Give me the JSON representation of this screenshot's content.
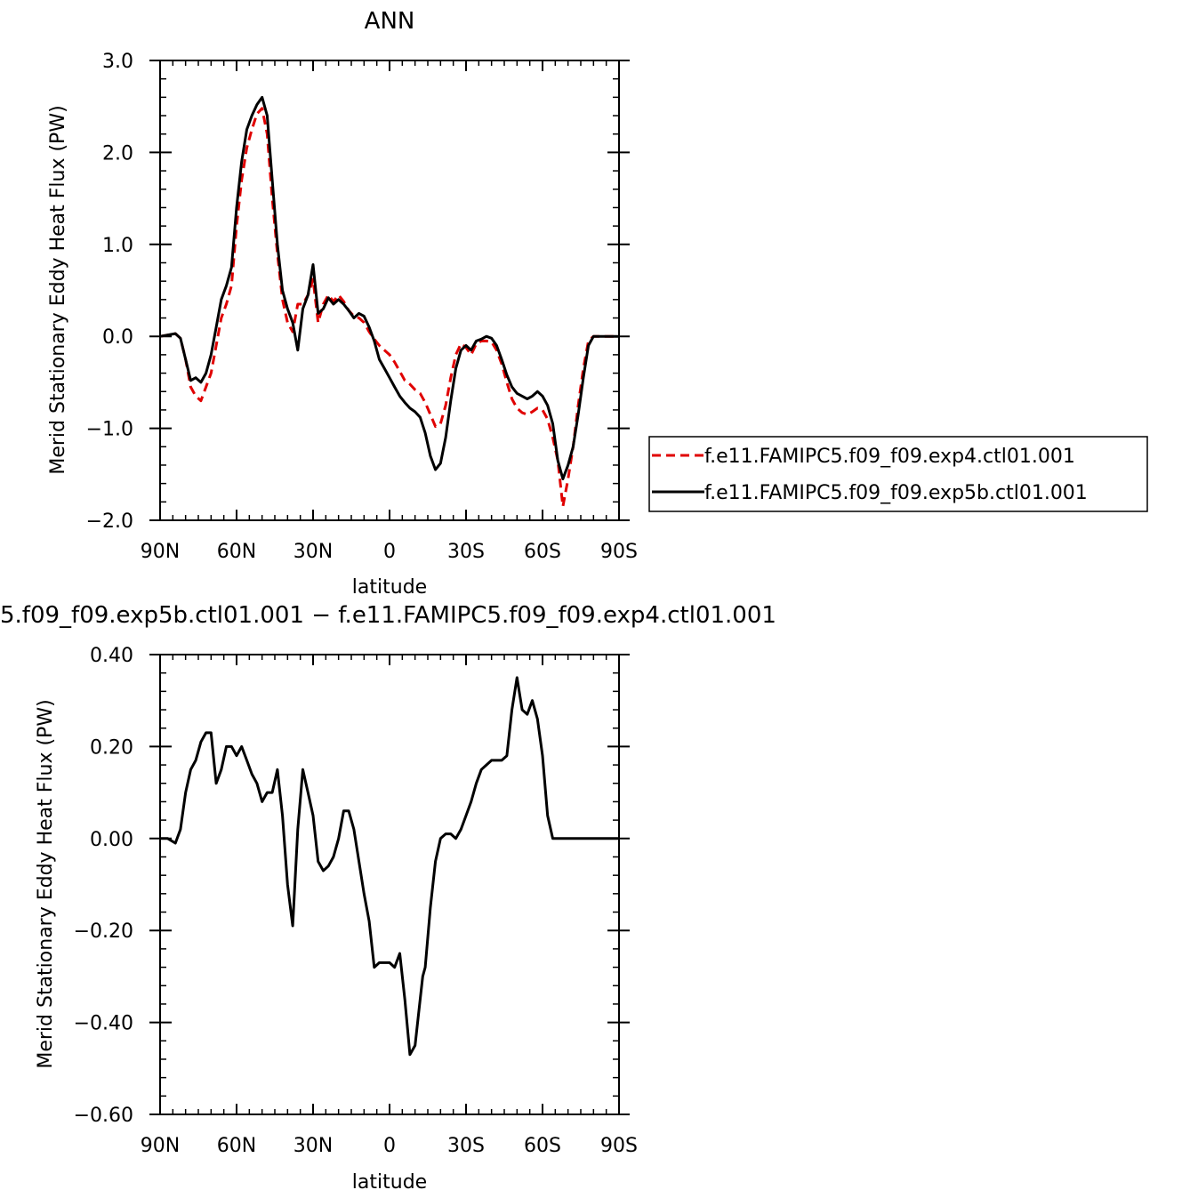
{
  "chart_data": [
    {
      "type": "line",
      "title": "ANN",
      "xlabel": "latitude",
      "ylabel": "Merid Stationary Eddy Heat Flux (PW)",
      "xlim": [
        90,
        -90
      ],
      "ylim": [
        -2.0,
        3.0
      ],
      "x_ticks": [
        90,
        60,
        30,
        0,
        -30,
        -60,
        -90
      ],
      "x_tick_labels": [
        "90N",
        "60N",
        "30N",
        "0",
        "30S",
        "60S",
        "90S"
      ],
      "y_ticks": [
        3.0,
        2.0,
        1.0,
        0.0,
        -1.0,
        -2.0
      ],
      "y_tick_labels": [
        "3.0",
        "2.0",
        "1.0",
        "0.0",
        "−1.0",
        "−2.0"
      ],
      "legend_position": "right-bottom",
      "series": [
        {
          "name": "f.e11.FAMIPC5.f09_f09.exp4.ctl01.001",
          "color": "#e00000",
          "dash": "dashed",
          "x": [
            90,
            88,
            86,
            84,
            82,
            80,
            78,
            76,
            74,
            72,
            70,
            68,
            66,
            64,
            62,
            60,
            58,
            56,
            54,
            52,
            50,
            48,
            46,
            44,
            42,
            40,
            38,
            36,
            34,
            32,
            30,
            28,
            26,
            24,
            22,
            20,
            18,
            16,
            14,
            12,
            10,
            8,
            6,
            4,
            2,
            0,
            -2,
            -4,
            -6,
            -8,
            -10,
            -12,
            -14,
            -16,
            -18,
            -20,
            -22,
            -24,
            -26,
            -28,
            -30,
            -32,
            -34,
            -36,
            -38,
            -40,
            -42,
            -44,
            -46,
            -48,
            -50,
            -52,
            -54,
            -56,
            -58,
            -60,
            -62,
            -64,
            -66,
            -68,
            -70,
            -72,
            -74,
            -76,
            -78,
            -80,
            -82,
            -84,
            -86,
            -88,
            -90
          ],
          "y": [
            0.0,
            0.01,
            0.02,
            0.03,
            -0.02,
            -0.25,
            -0.55,
            -0.65,
            -0.7,
            -0.55,
            -0.4,
            -0.1,
            0.2,
            0.35,
            0.55,
            1.2,
            1.7,
            2.05,
            2.25,
            2.42,
            2.48,
            2.2,
            1.5,
            0.9,
            0.4,
            0.15,
            0.05,
            0.35,
            0.35,
            0.45,
            0.62,
            0.15,
            0.35,
            0.45,
            0.38,
            0.45,
            0.38,
            0.28,
            0.22,
            0.2,
            0.15,
            0.05,
            -0.03,
            -0.1,
            -0.15,
            -0.2,
            -0.28,
            -0.38,
            -0.48,
            -0.52,
            -0.58,
            -0.62,
            -0.72,
            -0.85,
            -0.98,
            -0.95,
            -0.75,
            -0.45,
            -0.2,
            -0.08,
            -0.12,
            -0.2,
            -0.08,
            -0.05,
            -0.05,
            -0.06,
            -0.15,
            -0.3,
            -0.5,
            -0.68,
            -0.78,
            -0.83,
            -0.85,
            -0.82,
            -0.78,
            -0.8,
            -0.9,
            -1.1,
            -1.35,
            -1.85,
            -1.55,
            -1.2,
            -0.75,
            -0.35,
            -0.05,
            0.0,
            0.0,
            0.0,
            0.0,
            0.0,
            0.0
          ]
        },
        {
          "name": "f.e11.FAMIPC5.f09_f09.exp5b.ctl01.001",
          "color": "#000000",
          "dash": "solid",
          "x": [
            90,
            88,
            86,
            84,
            82,
            80,
            78,
            76,
            74,
            72,
            70,
            68,
            66,
            64,
            62,
            60,
            58,
            56,
            54,
            52,
            50,
            48,
            46,
            44,
            42,
            40,
            38,
            36,
            34,
            32,
            30,
            28,
            26,
            24,
            22,
            20,
            18,
            16,
            14,
            12,
            10,
            8,
            6,
            4,
            2,
            0,
            -2,
            -4,
            -6,
            -8,
            -10,
            -12,
            -14,
            -16,
            -18,
            -20,
            -22,
            -24,
            -26,
            -28,
            -30,
            -32,
            -34,
            -36,
            -38,
            -40,
            -42,
            -44,
            -46,
            -48,
            -50,
            -52,
            -54,
            -56,
            -58,
            -60,
            -62,
            -64,
            -66,
            -68,
            -70,
            -72,
            -74,
            -76,
            -78,
            -80,
            -82,
            -84,
            -86,
            -88,
            -90
          ],
          "y": [
            0.0,
            0.01,
            0.02,
            0.03,
            -0.02,
            -0.25,
            -0.48,
            -0.45,
            -0.5,
            -0.4,
            -0.2,
            0.1,
            0.4,
            0.55,
            0.75,
            1.4,
            1.9,
            2.25,
            2.4,
            2.52,
            2.6,
            2.4,
            1.7,
            1.0,
            0.5,
            0.3,
            0.15,
            -0.15,
            0.3,
            0.45,
            0.78,
            0.25,
            0.3,
            0.42,
            0.35,
            0.4,
            0.35,
            0.28,
            0.2,
            0.25,
            0.22,
            0.1,
            -0.05,
            -0.25,
            -0.35,
            -0.45,
            -0.55,
            -0.65,
            -0.72,
            -0.78,
            -0.82,
            -0.88,
            -1.05,
            -1.3,
            -1.45,
            -1.38,
            -1.1,
            -0.7,
            -0.35,
            -0.15,
            -0.1,
            -0.15,
            -0.05,
            -0.03,
            0.0,
            -0.02,
            -0.1,
            -0.25,
            -0.42,
            -0.55,
            -0.62,
            -0.65,
            -0.68,
            -0.65,
            -0.6,
            -0.65,
            -0.75,
            -0.95,
            -1.35,
            -1.55,
            -1.4,
            -1.2,
            -0.85,
            -0.45,
            -0.1,
            0.0,
            0.0,
            0.0,
            0.0,
            0.0,
            0.0
          ]
        }
      ]
    },
    {
      "type": "line",
      "title": "5.f09_f09.exp5b.ctl01.001 − f.e11.FAMIPC5.f09_f09.exp4.ctl01.001",
      "xlabel": "latitude",
      "ylabel": "Merid Stationary Eddy Heat Flux (PW)",
      "xlim": [
        90,
        -90
      ],
      "ylim": [
        -0.6,
        0.4
      ],
      "x_ticks": [
        90,
        60,
        30,
        0,
        -30,
        -60,
        -90
      ],
      "x_tick_labels": [
        "90N",
        "60N",
        "30N",
        "0",
        "30S",
        "60S",
        "90S"
      ],
      "y_ticks": [
        0.4,
        0.2,
        0.0,
        -0.2,
        -0.4,
        -0.6
      ],
      "y_tick_labels": [
        "0.40",
        "0.20",
        "0.00",
        "−0.20",
        "−0.40",
        "−0.60"
      ],
      "series": [
        {
          "color": "#000000",
          "dash": "solid",
          "x": [
            90,
            87,
            84,
            82,
            80,
            78,
            76,
            74,
            72,
            70,
            68,
            66,
            64,
            62,
            60,
            58,
            56,
            54,
            52,
            50,
            48,
            46,
            44,
            42,
            40,
            38,
            36,
            34,
            32,
            30,
            28,
            26,
            24,
            22,
            20,
            18,
            16,
            14,
            12,
            10,
            8,
            6,
            4,
            2,
            0,
            -2,
            -4,
            -6,
            -8,
            -10,
            -12,
            -13,
            -14,
            -16,
            -18,
            -20,
            -22,
            -24,
            -26,
            -28,
            -30,
            -32,
            -34,
            -36,
            -38,
            -40,
            -42,
            -44,
            -46,
            -48,
            -50,
            -52,
            -54,
            -56,
            -58,
            -60,
            -62,
            -64,
            -66,
            -68,
            -70,
            -72,
            -74,
            -76,
            -78,
            -80,
            -82,
            -84,
            -86,
            -88,
            -90
          ],
          "y": [
            0.0,
            0.0,
            -0.01,
            0.02,
            0.1,
            0.15,
            0.17,
            0.21,
            0.23,
            0.23,
            0.12,
            0.15,
            0.2,
            0.2,
            0.18,
            0.2,
            0.17,
            0.14,
            0.12,
            0.08,
            0.1,
            0.1,
            0.15,
            0.05,
            -0.1,
            -0.19,
            0.02,
            0.15,
            0.1,
            0.05,
            -0.05,
            -0.07,
            -0.06,
            -0.04,
            0.0,
            0.06,
            0.06,
            0.02,
            -0.05,
            -0.12,
            -0.18,
            -0.28,
            -0.27,
            -0.27,
            -0.27,
            -0.28,
            -0.25,
            -0.35,
            -0.47,
            -0.45,
            -0.35,
            -0.3,
            -0.28,
            -0.15,
            -0.05,
            0.0,
            0.01,
            0.01,
            0.0,
            0.02,
            0.05,
            0.08,
            0.12,
            0.15,
            0.16,
            0.17,
            0.17,
            0.17,
            0.18,
            0.28,
            0.35,
            0.28,
            0.27,
            0.3,
            0.26,
            0.18,
            0.05,
            0.0,
            0.0,
            0.0,
            0.0,
            0.0,
            0.0,
            0.0,
            0.0,
            0.0,
            0.0,
            0.0,
            0.0,
            0.0,
            0.0
          ]
        }
      ]
    }
  ]
}
